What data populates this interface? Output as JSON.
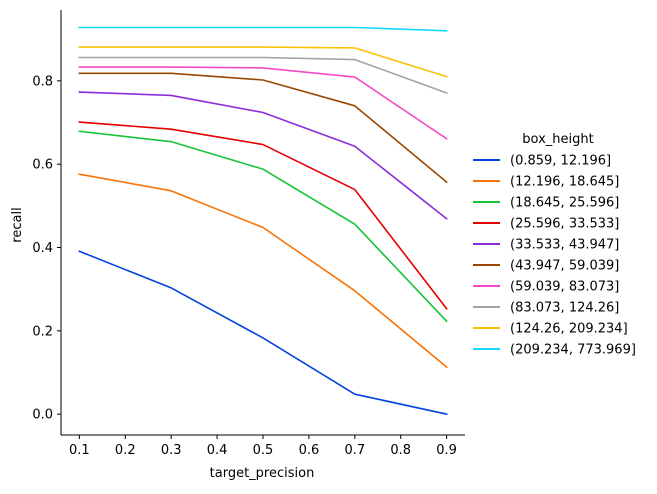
{
  "chart_data": {
    "type": "line",
    "xlabel": "target_precision",
    "ylabel": "recall",
    "x": [
      0.1,
      0.3,
      0.5,
      0.7,
      0.9
    ],
    "xlim": [
      0.06,
      0.94
    ],
    "ylim": [
      -0.05,
      0.97
    ],
    "xticks": [
      "0.1",
      "0.2",
      "0.3",
      "0.4",
      "0.5",
      "0.6",
      "0.7",
      "0.8",
      "0.9"
    ],
    "xtick_values": [
      0.1,
      0.2,
      0.3,
      0.4,
      0.5,
      0.6,
      0.7,
      0.8,
      0.9
    ],
    "yticks": [
      "0.0",
      "0.2",
      "0.4",
      "0.6",
      "0.8"
    ],
    "ytick_values": [
      0.0,
      0.2,
      0.4,
      0.6,
      0.8
    ],
    "grid": false,
    "legend_title": "box_height",
    "legend_position": "right",
    "series": [
      {
        "name": "(0.859, 12.196]",
        "color": "#0343df",
        "values": [
          0.391,
          0.303,
          0.183,
          0.048,
          0.0
        ]
      },
      {
        "name": "(12.196, 18.645]",
        "color": "#f97306",
        "values": [
          0.576,
          0.536,
          0.448,
          0.296,
          0.113
        ]
      },
      {
        "name": "(18.645, 25.596]",
        "color": "#15c535",
        "values": [
          0.679,
          0.654,
          0.588,
          0.456,
          0.223
        ]
      },
      {
        "name": "(25.596, 33.533]",
        "color": "#e50000",
        "values": [
          0.701,
          0.684,
          0.647,
          0.539,
          0.253
        ]
      },
      {
        "name": "(33.533, 43.947]",
        "color": "#8c2ed8",
        "values": [
          0.773,
          0.765,
          0.724,
          0.643,
          0.469
        ]
      },
      {
        "name": "(43.947, 59.039]",
        "color": "#9a4800",
        "values": [
          0.818,
          0.818,
          0.802,
          0.74,
          0.557
        ]
      },
      {
        "name": "(59.039, 83.073]",
        "color": "#f449c8",
        "values": [
          0.833,
          0.833,
          0.831,
          0.809,
          0.661
        ]
      },
      {
        "name": "(83.073, 124.26]",
        "color": "#a2a2a2",
        "values": [
          0.856,
          0.856,
          0.856,
          0.851,
          0.771
        ]
      },
      {
        "name": "(124.26, 209.234]",
        "color": "#fac205",
        "values": [
          0.881,
          0.881,
          0.881,
          0.879,
          0.81
        ]
      },
      {
        "name": "(209.234, 773.969]",
        "color": "#13d8ff",
        "values": [
          0.928,
          0.928,
          0.928,
          0.928,
          0.92
        ]
      }
    ]
  }
}
